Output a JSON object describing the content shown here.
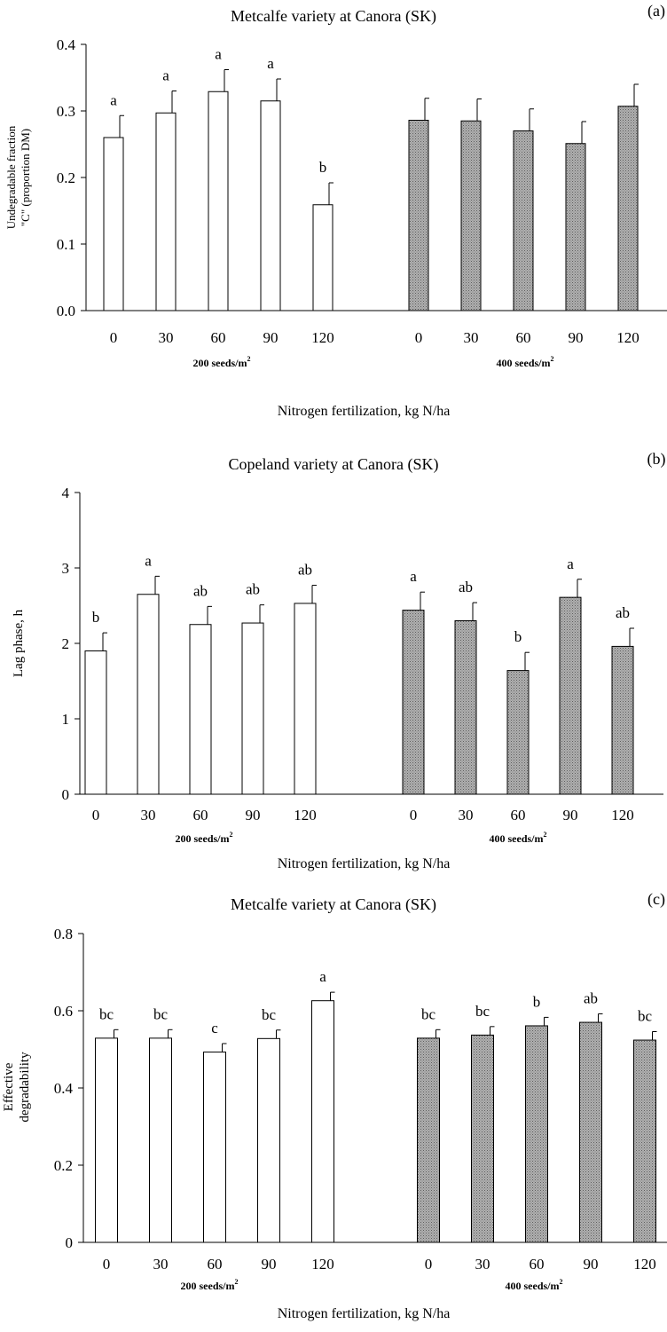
{
  "colors": {
    "bar_200": "#ffffff",
    "bar_400": "#9a9a9a",
    "axis": "#000000"
  },
  "chart_data": [
    {
      "type": "bar",
      "panel_label": "(a)",
      "title": "Metcalfe variety at Canora (SK)",
      "ylabel": [
        "Undegradable fraction",
        "\"C\" (proportion DM)"
      ],
      "xlabel": "Nitrogen fertilization, kg N/ha",
      "ylim": [
        0,
        0.4
      ],
      "yticks": [
        "0.0",
        "0.1",
        "0.2",
        "0.3",
        "0.4"
      ],
      "yticks_values": [
        0,
        0.1,
        0.2,
        0.3,
        0.4
      ],
      "groups": [
        {
          "name": "200 seeds/m",
          "sup": "2",
          "categories": [
            "0",
            "30",
            "60",
            "90",
            "120"
          ],
          "values": [
            0.26,
            0.297,
            0.329,
            0.315,
            0.159
          ],
          "errors": [
            0.033,
            0.033,
            0.033,
            0.033,
            0.033
          ],
          "letters": [
            "a",
            "a",
            "a",
            "a",
            "b"
          ]
        },
        {
          "name": "400 seeds/m",
          "sup": "2",
          "categories": [
            "0",
            "30",
            "60",
            "90",
            "120"
          ],
          "values": [
            0.286,
            0.285,
            0.27,
            0.251,
            0.307
          ],
          "errors": [
            0.033,
            0.033,
            0.033,
            0.033,
            0.033
          ],
          "letters": [
            "",
            "",
            "",
            "",
            ""
          ]
        }
      ]
    },
    {
      "type": "bar",
      "panel_label": "(b)",
      "title": "Copeland variety at Canora (SK)",
      "ylabel": [
        "Lag phase, h"
      ],
      "xlabel": "Nitrogen fertilization, kg N/ha",
      "ylim": [
        0,
        4
      ],
      "yticks": [
        "0",
        "1",
        "2",
        "3",
        "4"
      ],
      "yticks_values": [
        0,
        1,
        2,
        3,
        4
      ],
      "groups": [
        {
          "name": "200 seeds/m",
          "sup": "2",
          "categories": [
            "0",
            "30",
            "60",
            "90",
            "120"
          ],
          "values": [
            1.9,
            2.65,
            2.25,
            2.27,
            2.53
          ],
          "errors": [
            0.24,
            0.24,
            0.24,
            0.24,
            0.24
          ],
          "letters": [
            "b",
            "a",
            "ab",
            "ab",
            "ab"
          ]
        },
        {
          "name": "400 seeds/m",
          "sup": "2",
          "categories": [
            "0",
            "30",
            "60",
            "90",
            "120"
          ],
          "values": [
            2.44,
            2.3,
            1.64,
            2.61,
            1.96
          ],
          "errors": [
            0.24,
            0.24,
            0.24,
            0.24,
            0.24
          ],
          "letters": [
            "a",
            "ab",
            "b",
            "a",
            "ab"
          ]
        }
      ]
    },
    {
      "type": "bar",
      "panel_label": "(c)",
      "title": "Metcalfe variety at Canora (SK)",
      "ylabel": [
        "Effective",
        "degradability"
      ],
      "xlabel": "Nitrogen fertilization, kg N/ha",
      "ylim": [
        0,
        0.8
      ],
      "yticks": [
        "0",
        "0.2",
        "0.4",
        "0.6",
        "0.8"
      ],
      "yticks_values": [
        0,
        0.2,
        0.4,
        0.6,
        0.8
      ],
      "groups": [
        {
          "name": "200 seeds/m",
          "sup": "2",
          "categories": [
            "0",
            "30",
            "60",
            "90",
            "120"
          ],
          "values": [
            0.529,
            0.529,
            0.493,
            0.528,
            0.626
          ],
          "errors": [
            0.022,
            0.022,
            0.022,
            0.022,
            0.022
          ],
          "letters": [
            "bc",
            "bc",
            "c",
            "bc",
            "a"
          ]
        },
        {
          "name": "400 seeds/m",
          "sup": "2",
          "categories": [
            "0",
            "30",
            "60",
            "90",
            "120"
          ],
          "values": [
            0.529,
            0.537,
            0.561,
            0.57,
            0.524
          ],
          "errors": [
            0.022,
            0.022,
            0.022,
            0.022,
            0.022
          ],
          "letters": [
            "bc",
            "bc",
            "b",
            "ab",
            "bc"
          ]
        }
      ]
    }
  ]
}
